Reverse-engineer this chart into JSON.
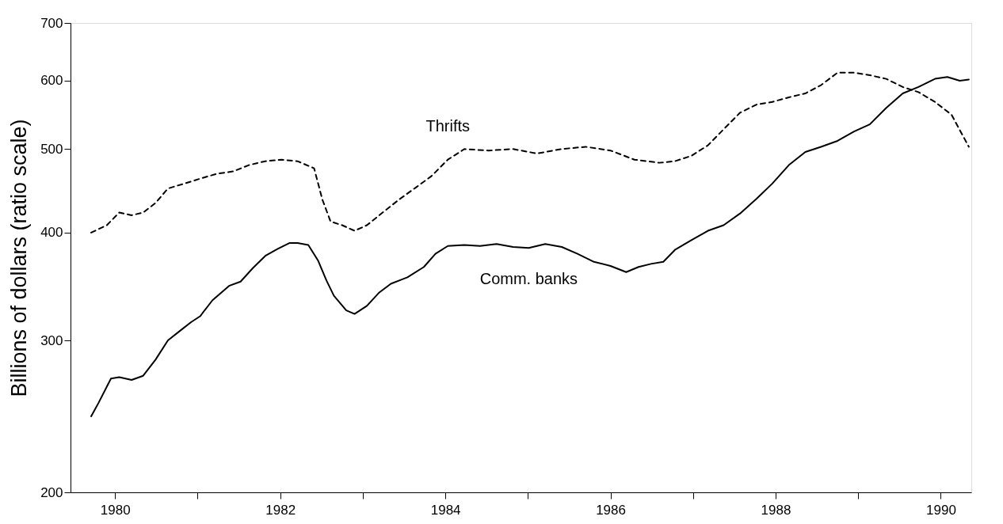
{
  "chart_data": {
    "type": "line",
    "ylabel": "Billions of dollars (ratio scale)",
    "log": true,
    "ylim": [
      200,
      700
    ],
    "yticks": [
      200,
      300,
      400,
      500,
      600,
      700
    ],
    "xlim": [
      1979.46,
      1990.37
    ],
    "xticks": [
      1980,
      {
        "value": 1981,
        "label": null
      },
      1982,
      {
        "value": 1983,
        "label": null
      },
      1984,
      {
        "value": 1985,
        "label": null
      },
      1986,
      {
        "value": 1987,
        "label": null
      },
      1988,
      {
        "value": 1989,
        "label": null
      },
      1990
    ],
    "grid": false,
    "marker": "none",
    "series": [
      {
        "name": "Thrifts",
        "color": "#000000",
        "line_style": "dashed",
        "x": [
          1979.71,
          1979.9,
          1980.05,
          1980.2,
          1980.34,
          1980.49,
          1980.64,
          1980.84,
          1981.03,
          1981.23,
          1981.43,
          1981.62,
          1981.82,
          1982.02,
          1982.21,
          1982.41,
          1982.51,
          1982.61,
          1982.75,
          1982.9,
          1983.05,
          1983.24,
          1983.44,
          1983.64,
          1983.83,
          1984.03,
          1984.23,
          1984.52,
          1984.82,
          1985.11,
          1985.41,
          1985.7,
          1986.0,
          1986.29,
          1986.59,
          1986.78,
          1986.98,
          1987.18,
          1987.37,
          1987.57,
          1987.77,
          1987.96,
          1988.16,
          1988.36,
          1988.55,
          1988.75,
          1988.95,
          1989.14,
          1989.34,
          1989.54,
          1989.73,
          1989.93,
          1990.13,
          1990.34
        ],
        "values": [
          400,
          408,
          422,
          419,
          422,
          433,
          450,
          456,
          462,
          468,
          471,
          479,
          484,
          486,
          484,
          475,
          437,
          412,
          408,
          402,
          408,
          422,
          437,
          451,
          465,
          486,
          500,
          498,
          500,
          494,
          500,
          503,
          498,
          486,
          482,
          484,
          491,
          505,
          527,
          551,
          563,
          567,
          574,
          580,
          593,
          613,
          613,
          609,
          603,
          590,
          582,
          567,
          548,
          503
        ]
      },
      {
        "name": "Comm. banks",
        "color": "#000000",
        "line_style": "solid",
        "x": [
          1979.71,
          1979.8,
          1979.95,
          1980.05,
          1980.2,
          1980.34,
          1980.49,
          1980.64,
          1980.79,
          1980.92,
          1981.03,
          1981.18,
          1981.38,
          1981.52,
          1981.67,
          1981.82,
          1981.97,
          1982.11,
          1982.21,
          1982.34,
          1982.46,
          1982.56,
          1982.65,
          1982.8,
          1982.9,
          1983.05,
          1983.2,
          1983.34,
          1983.54,
          1983.74,
          1983.88,
          1984.03,
          1984.23,
          1984.42,
          1984.62,
          1984.82,
          1985.01,
          1985.21,
          1985.41,
          1985.6,
          1985.8,
          1986.0,
          1986.19,
          1986.34,
          1986.49,
          1986.64,
          1986.78,
          1986.98,
          1987.18,
          1987.37,
          1987.57,
          1987.77,
          1987.96,
          1988.16,
          1988.36,
          1988.55,
          1988.75,
          1988.95,
          1989.14,
          1989.34,
          1989.54,
          1989.73,
          1989.93,
          1990.08,
          1990.23,
          1990.34
        ],
        "values": [
          245,
          254,
          271,
          272,
          270,
          273,
          285,
          300,
          308,
          315,
          320,
          334,
          347,
          351,
          364,
          376,
          383,
          389,
          389,
          387,
          371,
          352,
          338,
          325,
          322,
          329,
          341,
          349,
          355,
          365,
          378,
          386,
          387,
          386,
          388,
          385,
          384,
          388,
          385,
          378,
          370,
          366,
          360,
          365,
          368,
          370,
          382,
          392,
          402,
          408,
          421,
          438,
          456,
          479,
          496,
          503,
          511,
          524,
          534,
          558,
          580,
          590,
          603,
          606,
          600,
          602
        ]
      }
    ]
  }
}
